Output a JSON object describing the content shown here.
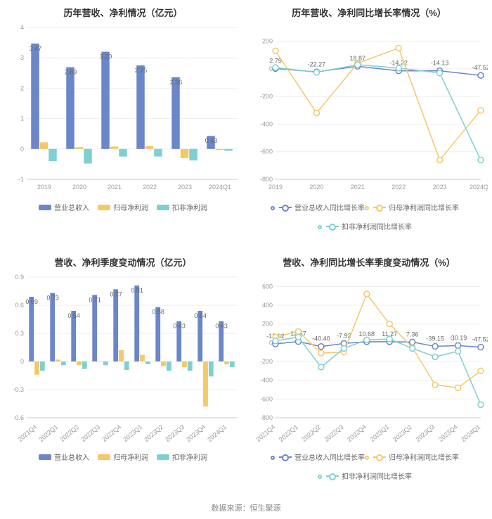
{
  "colors": {
    "series1": "#6b86c9",
    "series2": "#f4c869",
    "series3": "#7fd0d0",
    "grid": "#eeeeee",
    "axis": "#cccccc",
    "text": "#888888",
    "bg": "#ffffff"
  },
  "footer": "数据来源：恒生聚源",
  "charts": {
    "tl": {
      "type": "bar",
      "title": "历年营收、净利情况（亿元）",
      "categories": [
        "2019",
        "2020",
        "2021",
        "2022",
        "2023",
        "2024Q1"
      ],
      "ylim": [
        -1,
        4
      ],
      "ytick_step": 1,
      "title_fontsize": 13,
      "label_fontsize": 9,
      "bar_group_width": 0.75,
      "series": [
        {
          "name": "营业总收入",
          "color": "#6b86c9",
          "values": [
            3.47,
            2.69,
            3.2,
            2.75,
            2.36,
            0.43
          ],
          "show_labels": true
        },
        {
          "name": "归母净利润",
          "color": "#f4c869",
          "values": [
            0.22,
            0.06,
            0.08,
            0.1,
            -0.3,
            -0.04
          ],
          "show_labels": false
        },
        {
          "name": "扣非净利润",
          "color": "#7fd0d0",
          "values": [
            -0.4,
            -0.48,
            -0.25,
            -0.25,
            -0.38,
            -0.06
          ],
          "show_labels": false
        }
      ],
      "legend": [
        "营业总收入",
        "归母净利润",
        "扣非净利润"
      ]
    },
    "tr": {
      "type": "line",
      "title": "历年营收、净利同比增长率情况（%）",
      "categories": [
        "2019",
        "2020",
        "2021",
        "2022",
        "2023",
        "2024Q1"
      ],
      "ylim": [
        -800,
        300
      ],
      "yticks": [
        -800,
        -600,
        -400,
        -200,
        0,
        200
      ],
      "title_fontsize": 13,
      "label_fontsize": 9,
      "marker_size": 4,
      "line_width": 1.5,
      "series": [
        {
          "name": "营业总收入同比增长率",
          "color": "#6b86c9",
          "values": [
            2.79,
            -22.27,
            18.87,
            -14.22,
            -14.13,
            -47.52
          ],
          "show_labels": true
        },
        {
          "name": "归母净利润同比增长率",
          "color": "#f4c869",
          "values": [
            130,
            -320,
            40,
            150,
            -660,
            -300
          ],
          "show_labels": false
        },
        {
          "name": "扣非净利润同比增长率",
          "color": "#7fd0d0",
          "values": [
            10,
            -25,
            30,
            5,
            -30,
            -660
          ],
          "show_labels": false
        }
      ],
      "legend": [
        "营业总收入同比增长率",
        "归母净利润同比增长率",
        "扣非净利润同比增长率"
      ]
    },
    "bl": {
      "type": "bar",
      "title": "营收、净利季度变动情况（亿元）",
      "categories": [
        "2021Q4",
        "2022Q1",
        "2022Q2",
        "2022Q3",
        "2022Q4",
        "2023Q1",
        "2023Q2",
        "2023Q3",
        "2023Q4",
        "2024Q1"
      ],
      "ylim": [
        -0.6,
        0.9
      ],
      "ytick_step": 0.3,
      "title_fontsize": 13,
      "label_fontsize": 9,
      "bar_group_width": 0.78,
      "x_rotate": -40,
      "series": [
        {
          "name": "营业总收入",
          "color": "#6b86c9",
          "values": [
            0.69,
            0.73,
            0.54,
            0.71,
            0.77,
            0.81,
            0.58,
            0.43,
            0.54,
            0.43
          ],
          "show_labels": true
        },
        {
          "name": "归母净利润",
          "color": "#f4c869",
          "values": [
            -0.14,
            0.02,
            -0.04,
            0.0,
            0.12,
            0.07,
            -0.05,
            -0.06,
            -0.48,
            -0.03
          ],
          "show_labels": false
        },
        {
          "name": "扣非净利润",
          "color": "#7fd0d0",
          "values": [
            -0.1,
            -0.04,
            -0.08,
            -0.04,
            -0.09,
            -0.03,
            -0.1,
            -0.1,
            -0.16,
            -0.06
          ],
          "show_labels": false
        }
      ],
      "legend": [
        "营业总收入",
        "归母净利润",
        "扣非净利润"
      ]
    },
    "br": {
      "type": "line",
      "title": "营收、净利同比增长率季度变动情况（%）",
      "categories": [
        "2021Q4",
        "2022Q1",
        "2022Q2",
        "2022Q3",
        "2022Q4",
        "2023Q1",
        "2023Q2",
        "2023Q3",
        "2023Q4",
        "2024Q1"
      ],
      "ylim": [
        -800,
        700
      ],
      "yticks": [
        -800,
        -600,
        -400,
        -200,
        0,
        200,
        400,
        600
      ],
      "title_fontsize": 13,
      "label_fontsize": 9,
      "marker_size": 4,
      "line_width": 1.5,
      "x_rotate": -40,
      "series": [
        {
          "name": "营业总收入同比增长率",
          "color": "#6b86c9",
          "values": [
            -12.62,
            12.57,
            -40.4,
            -7.92,
            10.68,
            11.27,
            7.36,
            -39.15,
            -30.19,
            -47.52
          ],
          "show_labels": true
        },
        {
          "name": "归母净利润同比增长率",
          "color": "#f4c869",
          "values": [
            60,
            120,
            -110,
            -100,
            520,
            200,
            -50,
            -450,
            -480,
            -300
          ],
          "show_labels": false
        },
        {
          "name": "扣非净利润同比增长率",
          "color": "#7fd0d0",
          "values": [
            20,
            60,
            -260,
            -60,
            30,
            40,
            -60,
            -150,
            -90,
            -660
          ],
          "show_labels": false
        }
      ],
      "legend": [
        "营业总收入同比增长率",
        "归母净利润同比增长率",
        "扣非净利润同比增长率"
      ]
    }
  }
}
